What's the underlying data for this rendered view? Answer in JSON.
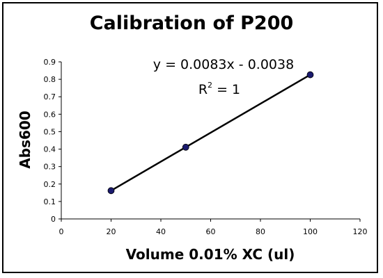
{
  "chart_data": {
    "type": "scatter",
    "title": "Calibration of P200",
    "xlabel": "Volume 0.01% XC (ul)",
    "ylabel": "Abs600",
    "xlim": [
      0,
      120
    ],
    "ylim": [
      0,
      0.9
    ],
    "x_ticks": [
      0,
      20,
      40,
      60,
      80,
      100,
      120
    ],
    "y_ticks": [
      0,
      0.1,
      0.2,
      0.3,
      0.4,
      0.5,
      0.6,
      0.7,
      0.8,
      0.9
    ],
    "y_tick_labels": [
      "0",
      "0.1",
      "0.2",
      "0.3",
      "0.4",
      "0.5",
      "0.6",
      "0.7",
      "0.8",
      "0.9"
    ],
    "series": [
      {
        "x": [
          20,
          50,
          100
        ],
        "values": [
          0.162,
          0.411,
          0.826
        ]
      }
    ],
    "trendline": {
      "slope": 0.0083,
      "intercept": -0.0038,
      "x_range": [
        20,
        100
      ]
    },
    "annotations": {
      "equation": "y = 0.0083x - 0.0038",
      "r_squared_base": "R",
      "r_squared_sup": "2",
      "r_squared_value": " = 1"
    },
    "colors": {
      "marker": "#1a1a6e",
      "line": "#000000"
    },
    "grid": false,
    "legend": "none"
  }
}
